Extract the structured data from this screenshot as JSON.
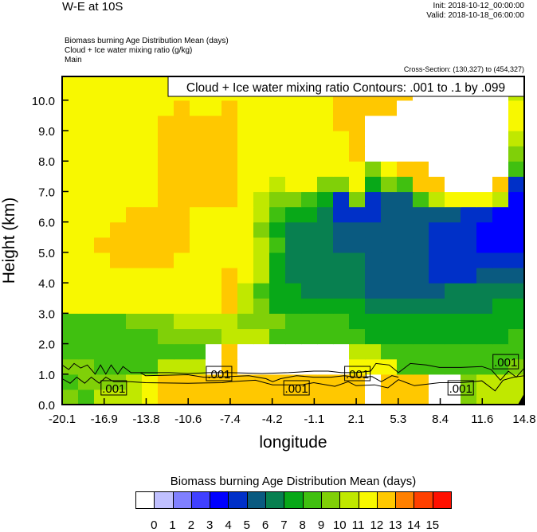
{
  "header": {
    "title": "W-E at 10S",
    "init": "Init: 2018-10-12_00:00:00",
    "valid": "Valid: 2018-10-18_06:00:00",
    "subtitles": [
      "Biomass burning Age Distribution Mean   (days)",
      "Cloud + Ice water mixing ratio   (g/kg)",
      "Main"
    ],
    "cross_section": "Cross-Section: (130,327) to (454,327)"
  },
  "chart_data": {
    "type": "heatmap",
    "title": "Biomass burning Age Distribution Mean  (days)",
    "overlay_title": "Cloud + Ice water mixing ratio Contours: .001 to .1 by .099",
    "xlabel": "longitude",
    "ylabel": "Height (km)",
    "xlim": [
      -20.1,
      14.8
    ],
    "ylim": [
      0,
      10.78
    ],
    "x_ticks": [
      "-20.1",
      "-16.9",
      "-13.8",
      "-10.6",
      "-7.4",
      "-4.2",
      "-1.1",
      "2.1",
      "5.3",
      "8.4",
      "11.6",
      "14.8"
    ],
    "y_ticks": [
      "0.0",
      "1.0",
      "2.0",
      "3.0",
      "4.0",
      "5.0",
      "6.0",
      "7.0",
      "8.0",
      "9.0",
      "10.0"
    ],
    "colorbar": {
      "levels": [
        "0",
        "1",
        "2",
        "3",
        "4",
        "5",
        "6",
        "7",
        "8",
        "9",
        "10",
        "11",
        "12",
        "13",
        "14",
        "15"
      ],
      "colors": [
        "#ffffff",
        "#c0c0ff",
        "#8080ff",
        "#4040ff",
        "#0000ff",
        "#0030c8",
        "#0a5a80",
        "#088050",
        "#08a818",
        "#40c010",
        "#80d008",
        "#c0e800",
        "#f8f800",
        "#ffc800",
        "#ff8000",
        "#ff4000",
        "#ff1000"
      ]
    },
    "grid": {
      "lon_step_count": 29,
      "height_step_km": 0.5,
      "rows_bottom_to_top": [
        [
          9.5,
          8.5,
          10.5,
          10.5,
          10.5,
          11.5,
          12.5,
          12.5,
          12.5,
          12.5,
          12.5,
          12.5,
          12.5,
          12.5,
          12.5,
          12.5,
          12.5,
          12.5,
          12.5,
          -1,
          12.5,
          12.5,
          12.5,
          -1,
          -1,
          9.5,
          10.5,
          10.5,
          10.5
        ],
        [
          8.5,
          9.5,
          9.5,
          9.5,
          10.5,
          11.5,
          12.5,
          12.5,
          12.5,
          12.5,
          12.5,
          12.5,
          12.5,
          12.5,
          12.5,
          12.5,
          12.5,
          12.5,
          12.5,
          -1,
          12.5,
          12.5,
          12.5,
          -1,
          -1,
          9.5,
          10.5,
          10.5,
          10.5
        ],
        [
          9.5,
          9.5,
          8.5,
          8.5,
          8.5,
          8.5,
          10.5,
          10.5,
          10.5,
          -1,
          12.5,
          -1,
          -1,
          -1,
          -1,
          -1,
          -1,
          -1,
          11.5,
          11.5,
          11.5,
          8.5,
          8.5,
          8.5,
          8.5,
          8.5,
          8.5,
          8.5,
          9.5
        ],
        [
          8.5,
          8.5,
          8.5,
          8.5,
          8.5,
          8.5,
          8.5,
          8.5,
          8.5,
          -1,
          12.5,
          -1,
          -1,
          -1,
          -1,
          -1,
          -1,
          -1,
          10.5,
          10.5,
          8.5,
          8.5,
          8.5,
          8.5,
          8.5,
          8.5,
          8.5,
          8.5,
          8.5
        ],
        [
          8.5,
          8.5,
          8.5,
          8.5,
          8.5,
          8.5,
          9.5,
          9.5,
          9.5,
          9.5,
          10.5,
          10.5,
          10.5,
          8.5,
          8.5,
          8.5,
          8.5,
          8.5,
          8.5,
          7.5,
          7.5,
          7.5,
          7.5,
          7.5,
          7.5,
          7.5,
          7.5,
          7.5,
          8.5
        ],
        [
          8.5,
          8.5,
          8.5,
          8.5,
          9.5,
          9.5,
          9.5,
          10.5,
          10.5,
          10.5,
          10.5,
          9.5,
          9.5,
          9.5,
          8.5,
          8.5,
          8.5,
          8.5,
          7.5,
          7.5,
          7.5,
          7.5,
          7.5,
          7.5,
          7.5,
          7.5,
          7.5,
          7.5,
          7.5
        ],
        [
          11.5,
          11.5,
          11.5,
          11.5,
          11.5,
          11.5,
          11.5,
          11.5,
          11.5,
          11.5,
          12.5,
          10.5,
          9.5,
          7.5,
          7.5,
          7.5,
          7.5,
          7.5,
          7.5,
          6.5,
          6.5,
          6.5,
          6.5,
          6.5,
          6.5,
          6.5,
          6.5,
          7.5,
          7.5
        ],
        [
          11.5,
          11.5,
          11.5,
          11.5,
          11.5,
          11.5,
          11.5,
          11.5,
          11.5,
          11.5,
          12.5,
          10.5,
          8.5,
          7.5,
          7.5,
          6.5,
          6.5,
          6.5,
          6.5,
          5.5,
          5.5,
          5.5,
          5.5,
          5.5,
          6.5,
          6.5,
          6.5,
          6.5,
          6.5
        ],
        [
          11.5,
          11.5,
          11.5,
          11.5,
          11.5,
          11.5,
          11.5,
          11.5,
          11.5,
          11.5,
          12.5,
          11.5,
          10.5,
          7.5,
          6.5,
          6.5,
          6.5,
          6.5,
          6.5,
          5.5,
          5.5,
          5.5,
          5.5,
          4.5,
          4.5,
          4.5,
          5.5,
          5.5,
          5.5
        ],
        [
          11.5,
          11.5,
          11.5,
          12.5,
          12.5,
          12.5,
          12.5,
          11.5,
          11.5,
          11.5,
          11.5,
          11.5,
          10.5,
          7.5,
          6.5,
          6.5,
          6.5,
          6.5,
          6.5,
          5.5,
          5.5,
          5.5,
          5.5,
          4.5,
          4.5,
          4.5,
          4.5,
          4.5,
          4.5
        ],
        [
          11.5,
          11.5,
          12.5,
          12.5,
          12.5,
          12.5,
          12.5,
          12.5,
          11.5,
          11.5,
          11.5,
          11.5,
          10.5,
          8.5,
          6.5,
          6.5,
          6.5,
          5.5,
          5.5,
          5.5,
          5.5,
          5.5,
          5.5,
          4.5,
          4.5,
          4.5,
          3.5,
          3.5,
          3.5
        ],
        [
          11.5,
          11.5,
          11.5,
          12.5,
          12.5,
          12.5,
          12.5,
          12.5,
          11.5,
          11.5,
          11.5,
          11.5,
          9.5,
          7.5,
          6.5,
          6.5,
          6.5,
          5.5,
          5.5,
          5.5,
          5.5,
          5.5,
          5.5,
          4.5,
          4.5,
          4.5,
          3.5,
          3.5,
          3.5
        ],
        [
          11.5,
          11.5,
          11.5,
          11.5,
          12.5,
          12.5,
          12.5,
          12.5,
          11.5,
          11.5,
          11.5,
          11.5,
          10.5,
          8.5,
          7.5,
          7.5,
          6.5,
          4.5,
          4.5,
          4.5,
          5.5,
          5.5,
          5.5,
          5.5,
          5.5,
          4.5,
          4.5,
          3.5,
          3.5
        ],
        [
          11.5,
          11.5,
          11.5,
          11.5,
          11.5,
          11.5,
          12.5,
          12.5,
          12.5,
          12.5,
          12.5,
          11.5,
          10.5,
          9.5,
          9.5,
          8.5,
          7.5,
          4.5,
          9.5,
          4.5,
          5.5,
          5.5,
          8.5,
          10.5,
          11.5,
          11.5,
          11.5,
          10.5,
          3.5
        ],
        [
          11.5,
          11.5,
          11.5,
          11.5,
          11.5,
          11.5,
          12.5,
          12.5,
          12.5,
          12.5,
          12.5,
          11.5,
          11.5,
          10.5,
          11.5,
          11.5,
          9.5,
          9.5,
          11.5,
          7.5,
          9.5,
          8.5,
          12.5,
          12.5,
          -1,
          -1,
          -1,
          12.5,
          4.5
        ],
        [
          11.5,
          11.5,
          11.5,
          11.5,
          11.5,
          11.5,
          12.5,
          12.5,
          12.5,
          12.5,
          12.5,
          11.5,
          11.5,
          11.5,
          11.5,
          11.5,
          11.5,
          11.5,
          11.5,
          9.5,
          11.5,
          12.5,
          12.5,
          -1,
          -1,
          -1,
          -1,
          -1,
          8.5
        ],
        [
          11.5,
          11.5,
          11.5,
          11.5,
          11.5,
          11.5,
          12.5,
          12.5,
          12.5,
          12.5,
          12.5,
          11.5,
          11.5,
          11.5,
          11.5,
          11.5,
          11.5,
          11.5,
          12.5,
          -1,
          -1,
          -1,
          -1,
          -1,
          -1,
          -1,
          -1,
          -1,
          9.5
        ],
        [
          11.5,
          11.5,
          11.5,
          11.5,
          11.5,
          11.5,
          12.5,
          12.5,
          12.5,
          12.5,
          12.5,
          11.5,
          11.5,
          11.5,
          11.5,
          11.5,
          11.5,
          11.5,
          12.5,
          -1,
          -1,
          -1,
          -1,
          -1,
          -1,
          -1,
          -1,
          -1,
          10.5
        ],
        [
          11.5,
          11.5,
          11.5,
          11.5,
          11.5,
          11.5,
          12.5,
          12.5,
          12.5,
          12.5,
          12.5,
          11.5,
          11.5,
          11.5,
          11.5,
          11.5,
          11.5,
          12.5,
          12.5,
          -1,
          -1,
          -1,
          -1,
          -1,
          -1,
          -1,
          -1,
          -1,
          11.5
        ],
        [
          11.5,
          11.5,
          11.5,
          11.5,
          11.5,
          11.5,
          11.5,
          12.5,
          11.5,
          11.5,
          12.5,
          11.5,
          11.5,
          11.5,
          11.5,
          11.5,
          11.5,
          12.5,
          12.5,
          12.5,
          12.5,
          -1,
          -1,
          -1,
          -1,
          -1,
          -1,
          -1,
          11.5
        ],
        [
          11.5,
          11.5,
          11.5,
          11.5,
          11.5,
          11.5,
          11.5,
          11.5,
          11.5,
          11.5,
          11.5,
          11.5,
          11.5,
          11.5,
          11.5,
          11.5,
          11.5,
          12.5,
          12.5,
          12.5,
          12.5,
          12.5,
          -1,
          -1,
          -1,
          -1,
          -1,
          -1,
          10.5
        ],
        [
          11.5,
          11.5,
          11.5,
          11.5,
          11.5,
          11.5,
          11.5,
          11.5,
          11.5,
          11.5,
          11.5,
          11.5,
          11.5,
          11.5,
          11.5,
          11.5,
          11.5,
          12.5,
          12.5,
          12.5,
          12.5,
          12.5,
          -1,
          -1,
          -1,
          -1,
          -1,
          -1,
          12.5
        ]
      ]
    },
    "contours": [
      {
        "level": 0.001,
        "points": [
          [
            -20.1,
            1.3
          ],
          [
            -19.6,
            1.15
          ],
          [
            -19.2,
            1.35
          ],
          [
            -18.7,
            1.2
          ],
          [
            -18.2,
            1.3
          ],
          [
            -17.6,
            1.0
          ],
          [
            -17.2,
            1.3
          ],
          [
            -16.8,
            1.0
          ],
          [
            -16.4,
            1.3
          ],
          [
            -15.9,
            1.0
          ],
          [
            -15.5,
            1.25
          ],
          [
            -14.9,
            1.05
          ],
          [
            -13.8,
            1.05
          ],
          [
            -12.0,
            1.05
          ],
          [
            -10.6,
            1.02
          ],
          [
            -9.0,
            1.05
          ],
          [
            -7.4,
            1.05
          ],
          [
            -5.0,
            1.02
          ],
          [
            -3.0,
            1.05
          ],
          [
            -1.1,
            1.1
          ],
          [
            0.0,
            1.1
          ],
          [
            1.0,
            1.05
          ],
          [
            2.1,
            1.05
          ],
          [
            3.2,
            1.1
          ],
          [
            3.6,
            1.35
          ],
          [
            4.6,
            1.3
          ],
          [
            5.3,
            1.05
          ],
          [
            6.2,
            1.35
          ],
          [
            7.4,
            1.3
          ],
          [
            8.4,
            1.22
          ],
          [
            10.0,
            1.22
          ],
          [
            11.6,
            1.25
          ],
          [
            12.3,
            1.15
          ],
          [
            13.0,
            0.8
          ],
          [
            13.6,
            1.1
          ],
          [
            14.2,
            0.9
          ],
          [
            14.8,
            1.2
          ]
        ]
      },
      {
        "level": 0.001,
        "points": [
          [
            -20.1,
            0.85
          ],
          [
            -19.5,
            0.7
          ],
          [
            -19.0,
            0.9
          ],
          [
            -18.4,
            0.7
          ],
          [
            -17.9,
            0.9
          ],
          [
            -17.3,
            0.7
          ],
          [
            -16.8,
            0.9
          ],
          [
            -16.2,
            0.75
          ],
          [
            -15.0,
            0.75
          ],
          [
            -13.8,
            0.72
          ],
          [
            -10.6,
            0.7
          ],
          [
            -8.0,
            0.72
          ],
          [
            -7.4,
            0.75
          ],
          [
            -5.5,
            0.8
          ],
          [
            -4.2,
            0.65
          ],
          [
            -2.0,
            0.65
          ],
          [
            -1.1,
            0.72
          ],
          [
            0.5,
            0.6
          ],
          [
            1.5,
            0.75
          ],
          [
            2.1,
            0.62
          ],
          [
            3.5,
            0.65
          ],
          [
            4.5,
            0.55
          ],
          [
            5.3,
            0.82
          ],
          [
            6.5,
            0.62
          ],
          [
            8.4,
            0.72
          ],
          [
            10.0,
            0.72
          ],
          [
            11.6,
            0.78
          ],
          [
            12.6,
            0.45
          ],
          [
            13.2,
            0.8
          ],
          [
            14.0,
            0.9
          ],
          [
            14.8,
            0.95
          ]
        ]
      },
      {
        "level": 0.001,
        "points": [
          [
            -14.2,
            1.05
          ],
          [
            -13.8,
            0.95
          ],
          [
            -10.6,
            0.98
          ],
          [
            -9.4,
            0.9
          ],
          [
            -8.4,
            0.9
          ],
          [
            -7.4,
            0.92
          ],
          [
            -6.0,
            0.95
          ],
          [
            -4.7,
            0.85
          ],
          [
            -4.2,
            0.75
          ],
          [
            -3.6,
            0.85
          ],
          [
            -2.4,
            0.95
          ],
          [
            -1.1,
            0.9
          ],
          [
            0.2,
            0.9
          ],
          [
            1.2,
            0.95
          ],
          [
            2.1,
            0.9
          ],
          [
            3.3,
            0.92
          ],
          [
            4.0,
            0.75
          ],
          [
            4.8,
            0.95
          ],
          [
            5.3,
            0.9
          ]
        ]
      }
    ],
    "contour_labels": [
      {
        "text": ".001",
        "lon": -8.25,
        "h": 1.02
      },
      {
        "text": ".001",
        "lon": -16.2,
        "h": 0.55
      },
      {
        "text": ".001",
        "lon": -2.4,
        "h": 0.55
      },
      {
        "text": ".001",
        "lon": 2.2,
        "h": 1.02
      },
      {
        "text": ".001",
        "lon": 10.0,
        "h": 0.55
      },
      {
        "text": ".001",
        "lon": 13.4,
        "h": 1.41
      }
    ]
  }
}
